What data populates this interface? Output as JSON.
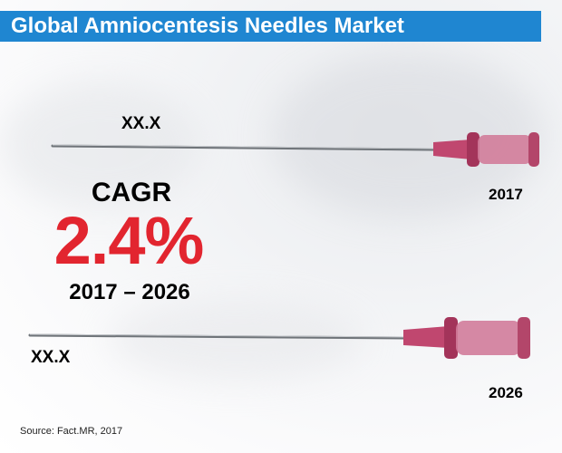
{
  "title": "Global Amniocentesis Needles Market",
  "chart_data": {
    "type": "bar",
    "categories": [
      "2017",
      "2026"
    ],
    "value_labels": [
      "XX.X",
      "XX.X"
    ],
    "values": [
      null,
      null
    ],
    "cagr": {
      "label": "CAGR",
      "value": "2.4%",
      "period": "2017 – 2026"
    }
  },
  "source": "Source: Fact.MR, 2017",
  "colors": {
    "title_bar": "#1f86d1",
    "cagr_value": "#e2252f",
    "needle_hub": "#c0476f"
  }
}
